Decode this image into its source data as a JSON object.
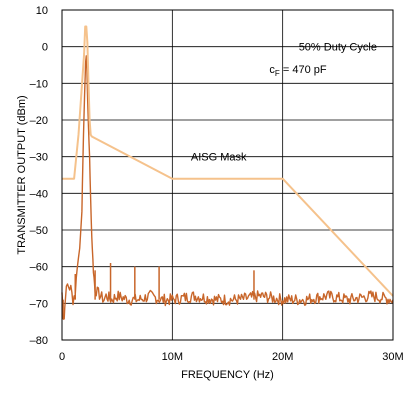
{
  "chart_data": {
    "type": "line",
    "title": "",
    "xlabel": "FREQUENCY (Hz)",
    "ylabel": "TRANSMITTER OUTPUT (dBm)",
    "xlim": [
      0,
      30
    ],
    "ylim": [
      -80,
      10
    ],
    "x_unit": "MHz",
    "x_ticks": [
      {
        "value": 0,
        "label": "0"
      },
      {
        "value": 10,
        "label": "10M"
      },
      {
        "value": 20,
        "label": "20M"
      },
      {
        "value": 30,
        "label": "30M"
      }
    ],
    "y_ticks": [
      {
        "value": 10,
        "label": "10"
      },
      {
        "value": 0,
        "label": "0"
      },
      {
        "value": -10,
        "label": "–10"
      },
      {
        "value": -20,
        "label": "–20"
      },
      {
        "value": -30,
        "label": "–30"
      },
      {
        "value": -40,
        "label": "–40"
      },
      {
        "value": -50,
        "label": "–50"
      },
      {
        "value": -60,
        "label": "–60"
      },
      {
        "value": -70,
        "label": "–70"
      },
      {
        "value": -80,
        "label": "–80"
      }
    ],
    "grid": true,
    "annotations": {
      "duty_cycle": "50% Duty Cycle",
      "cap_prefix": "c",
      "cap_sub": "F",
      "cap_value": " = 470 pF",
      "mask_label": "AISG Mask"
    },
    "series": [
      {
        "color": "#f5c28c",
        "x": [
          0,
          1.1,
          1.5,
          2.0,
          2.1,
          2.2,
          2.3,
          2.4,
          2.5,
          2.6,
          2.7,
          3.0,
          10.0,
          20.0,
          30.0
        ],
        "y": [
          -36,
          -36,
          -24,
          -2,
          5.5,
          5.5,
          1,
          -10,
          -20,
          -24,
          -24.5,
          -25,
          -36,
          -36,
          -68
        ]
      },
      {
        "color": "#c8662a",
        "noise_floor": -69,
        "x": [
          0,
          0.1,
          0.2,
          0.3,
          0.5,
          0.8,
          1.0,
          1.2,
          1.4,
          1.6,
          1.8,
          1.9,
          2.0,
          2.1,
          2.15,
          2.2,
          2.25,
          2.3,
          2.4,
          2.5,
          2.6,
          2.7,
          2.8,
          2.9,
          3.0,
          3.2,
          3.5,
          3.8,
          4.0,
          4.5,
          5.0,
          6.0,
          7.0,
          8.0,
          9.0,
          10.0,
          12.0,
          14.0,
          16.0,
          18.0,
          20.0,
          22.0,
          24.0,
          26.0,
          28.0,
          30.0
        ],
        "y": [
          -67,
          -73,
          -74,
          -68,
          -65,
          -66,
          -69,
          -67,
          -60,
          -55,
          -45,
          -30,
          -18,
          -8,
          -4,
          -2.5,
          -5,
          -12,
          -22,
          -30,
          -42,
          -52,
          -58,
          -63,
          -66,
          -67,
          -68,
          -69,
          -68,
          -69,
          -68,
          -69,
          -69,
          -68,
          -69,
          -69,
          -68,
          -69,
          -69,
          -68,
          -69,
          -69,
          -68,
          -69,
          -68,
          -69
        ]
      }
    ],
    "spurs": [
      {
        "x": 0.1,
        "y": -74
      },
      {
        "x": 1.2,
        "y": -62
      },
      {
        "x": 3.0,
        "y": -61
      },
      {
        "x": 4.4,
        "y": -59
      },
      {
        "x": 6.6,
        "y": -60
      },
      {
        "x": 8.8,
        "y": -60
      },
      {
        "x": 17.4,
        "y": -61
      }
    ]
  }
}
